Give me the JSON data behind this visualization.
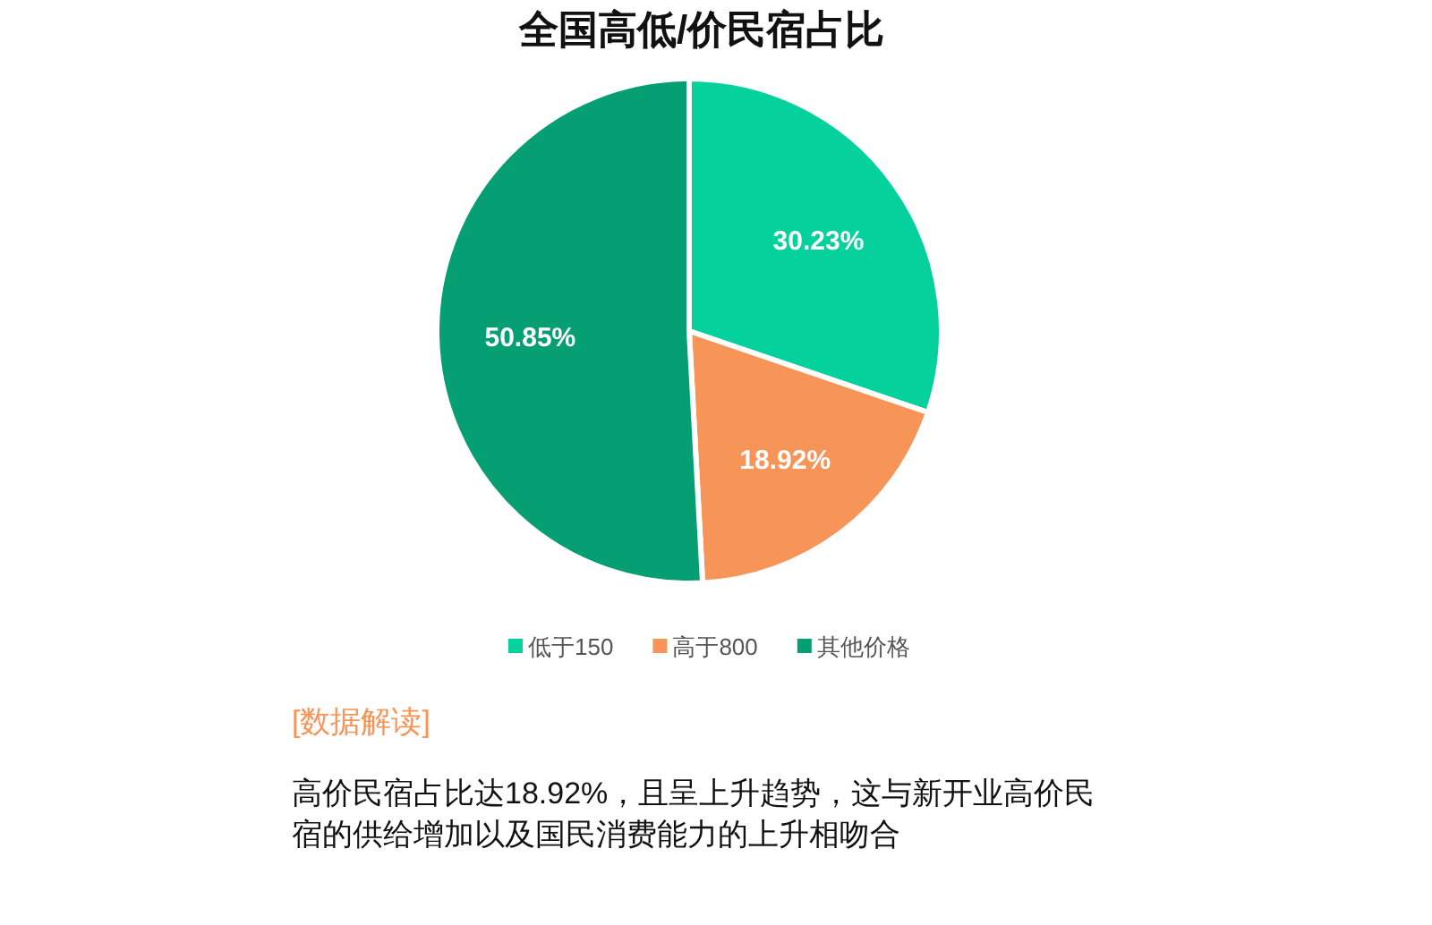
{
  "chart_data": {
    "type": "pie",
    "title": "全国高低/价民宿占比",
    "categories": [
      "低于150",
      "高于800",
      "其他价格"
    ],
    "values": [
      30.23,
      18.92,
      50.85
    ],
    "value_labels": [
      "30.23%",
      "18.92%",
      "50.85%"
    ],
    "colors": [
      "#05d19c",
      "#f79457",
      "#069e73"
    ],
    "legend": "bottom",
    "annotations": [
      "[数据解读]",
      "高价民宿占比达18.92%，且呈上升趋势，这与新开业高价民宿的供给增加以及国民消费能力的上升相吻合"
    ]
  }
}
